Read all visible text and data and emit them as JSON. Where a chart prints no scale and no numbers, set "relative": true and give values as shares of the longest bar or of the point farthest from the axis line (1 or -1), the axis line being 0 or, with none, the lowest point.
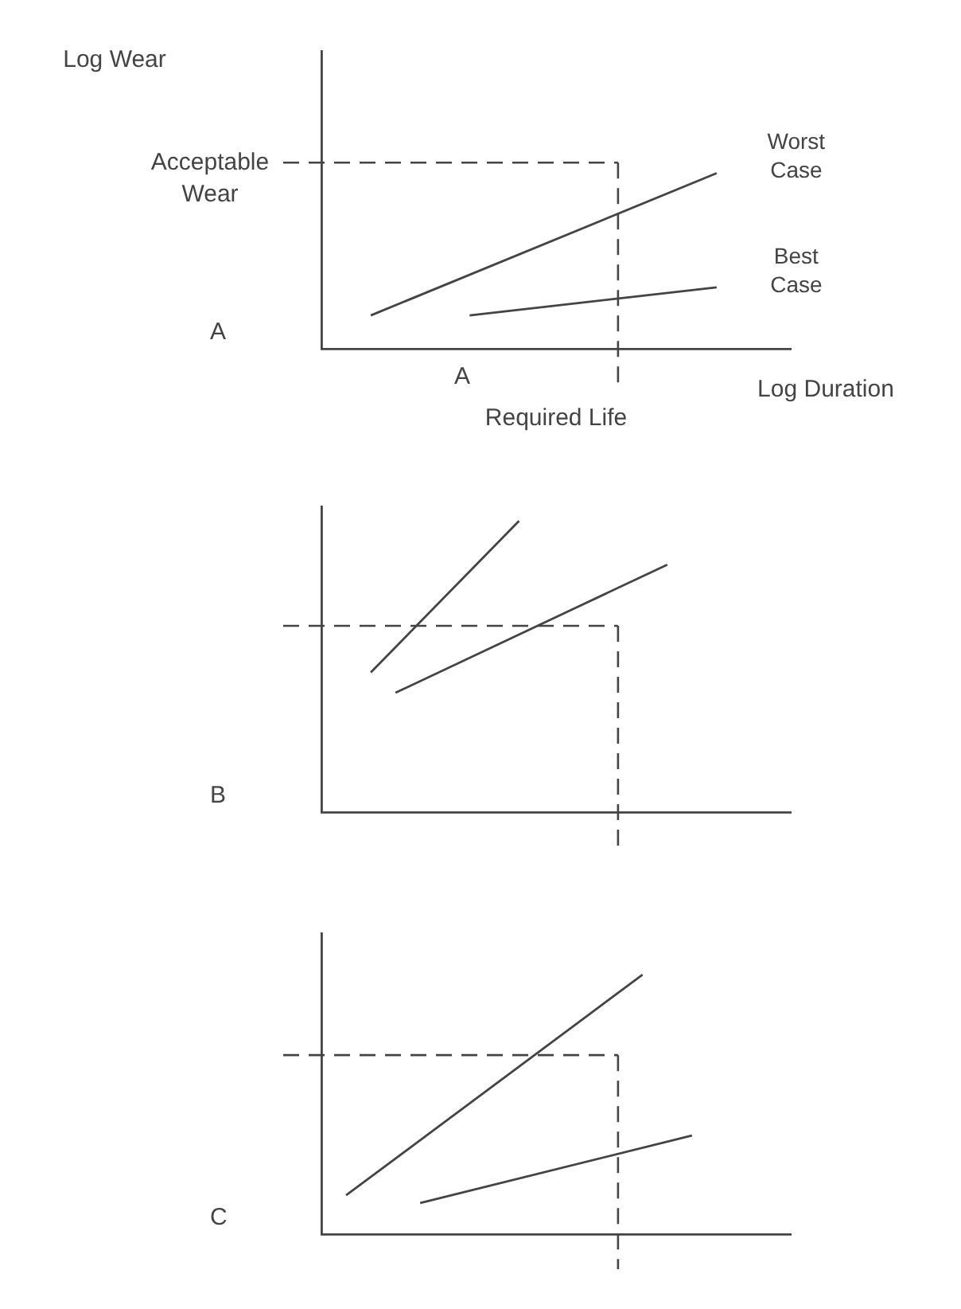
{
  "chart_data": [
    {
      "type": "line",
      "title": "A",
      "xlabel": "Log Duration",
      "ylabel": "Log Wear",
      "annotations": [
        "A",
        "Required Life"
      ],
      "relative": true,
      "grid": false,
      "legend": false,
      "marker": "none",
      "tick_labels": false,
      "categories": [
        null,
        null,
        null,
        null,
        null,
        null,
        null,
        null,
        null,
        null,
        null,
        null,
        null,
        null,
        null,
        null,
        null,
        null,
        null,
        null
      ],
      "series": [
        {
          "name": "Worst Case",
          "color": "#444444",
          "values": [
            null,
            null,
            0.19,
            null,
            null,
            null,
            null,
            null,
            null,
            null,
            null,
            null,
            null,
            null,
            null,
            null,
            1,
            null,
            null,
            null
          ]
        },
        {
          "name": "Best Case",
          "color": "#444444",
          "values": [
            null,
            null,
            null,
            null,
            null,
            null,
            0.19,
            null,
            null,
            null,
            null,
            null,
            null,
            null,
            null,
            null,
            0.35,
            null,
            null,
            null
          ]
        }
      ],
      "ref_lines": [
        {
          "axis": "y",
          "value": 1.06,
          "label": "Acceptable Wear",
          "line_style": "dashed"
        }
      ]
    },
    {
      "type": "line",
      "title": "B",
      "relative": true,
      "grid": false,
      "legend": false,
      "marker": "none",
      "tick_labels": false,
      "categories": [
        null,
        null,
        null,
        null,
        null,
        null,
        null,
        null,
        null,
        null,
        null,
        null,
        null,
        null,
        null,
        null,
        null,
        null,
        null,
        null
      ],
      "series": [
        {
          "color": "#444444",
          "values": [
            null,
            null,
            0.48,
            null,
            null,
            null,
            null,
            null,
            1,
            null,
            null,
            null,
            null,
            null,
            null,
            null,
            null,
            null,
            null,
            null
          ]
        },
        {
          "color": "#444444",
          "values": [
            null,
            null,
            null,
            0.41,
            null,
            null,
            null,
            null,
            null,
            null,
            null,
            null,
            null,
            null,
            0.85,
            null,
            null,
            null,
            null,
            null
          ]
        }
      ],
      "ref_lines": [
        {
          "axis": "y",
          "value": 0.64,
          "line_style": "dashed"
        }
      ]
    },
    {
      "type": "line",
      "title": "C",
      "relative": true,
      "grid": false,
      "legend": false,
      "marker": "none",
      "tick_labels": false,
      "categories": [
        null,
        null,
        null,
        null,
        null,
        null,
        null,
        null,
        null,
        null,
        null,
        null,
        null,
        null,
        null,
        null,
        null,
        null,
        null,
        null
      ],
      "series": [
        {
          "color": "#444444",
          "values": [
            null,
            0.15,
            null,
            null,
            null,
            null,
            null,
            null,
            null,
            null,
            null,
            null,
            null,
            1,
            null,
            null,
            null,
            null,
            null,
            null
          ]
        },
        {
          "color": "#444444",
          "values": [
            null,
            null,
            null,
            null,
            0.12,
            null,
            null,
            null,
            null,
            null,
            null,
            null,
            null,
            null,
            null,
            0.38,
            null,
            null,
            null,
            null
          ]
        }
      ],
      "ref_lines": [
        {
          "axis": "y",
          "value": 0.69,
          "line_style": "dashed"
        }
      ]
    }
  ]
}
